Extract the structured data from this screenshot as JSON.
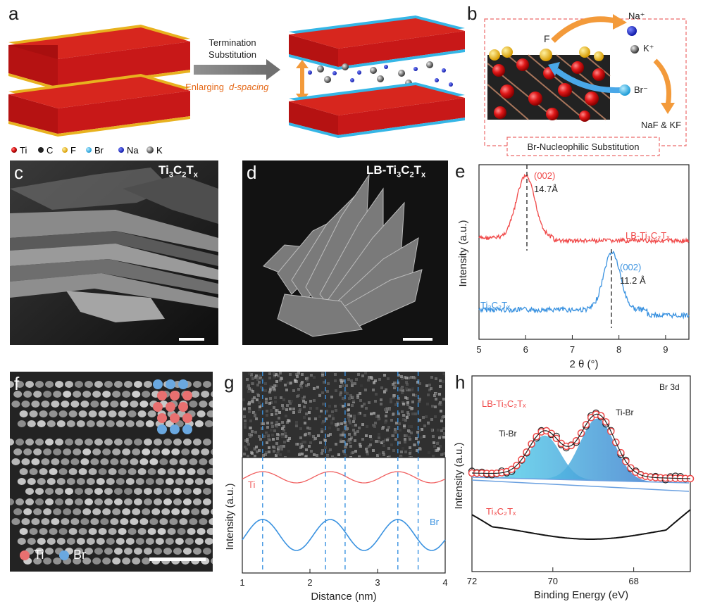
{
  "panel_labels": {
    "a": "a",
    "b": "b",
    "c": "c",
    "d": "d",
    "e": "e",
    "f": "f",
    "g": "g",
    "h": "h"
  },
  "panel_a": {
    "arrow_text_top1": "Termination",
    "arrow_text_top2": "Substitution",
    "arrow_text_bottom1": "Enlarging",
    "arrow_text_bottom2": "d-spacing",
    "legend": [
      {
        "symbol": "Ti",
        "color": "#d81e1e"
      },
      {
        "symbol": "C",
        "color": "#222222"
      },
      {
        "symbol": "F",
        "color": "#e8b21f"
      },
      {
        "symbol": "Br",
        "color": "#35b6e6"
      },
      {
        "symbol": "Na",
        "color": "#1b2bd1"
      },
      {
        "symbol": "K",
        "color": "#555555"
      }
    ]
  },
  "panel_b": {
    "F": "F",
    "Na": "Na⁺",
    "K": "K⁺",
    "Br": "Br⁻",
    "product": "NaF & KF",
    "caption": "Br-Nucleophilic Substitution"
  },
  "panel_c": {
    "title_main": "Ti",
    "title_sub1": "3",
    "title_mid": "C",
    "title_sub2": "2",
    "title_end": "T",
    "title_sub3": "x"
  },
  "panel_d": {
    "prefix": "LB-Ti",
    "sub1": "3",
    "mid": "C",
    "sub2": "2",
    "end": "T",
    "sub3": "x"
  },
  "panel_e": {
    "ylabel": "Intensity (a.u.)",
    "xlabel": "2 θ (°)",
    "xticks": [
      "5",
      "6",
      "7",
      "8",
      "9"
    ],
    "peak1_label": "(002)",
    "peak1_spacing": "14.7Å",
    "peak2_label": "(002)",
    "peak2_spacing": "11.2 Å",
    "series1": "LB-Ti₃C₂Tₓ",
    "series2": "Ti₃C₂Tₓ",
    "color1": "#f04848",
    "color2": "#3a92e0"
  },
  "panel_f": {
    "legend_ti": "Ti",
    "legend_br": "Br"
  },
  "panel_g": {
    "ylabel": "Intensity (a.u.)",
    "xlabel": "Distance (nm)",
    "xticks": [
      "1",
      "2",
      "3",
      "4"
    ],
    "ti_label": "Ti",
    "br_label": "Br"
  },
  "panel_h": {
    "corner": "Br 3d",
    "series1": "LB-Ti₃C₂Tₓ",
    "series2": "Ti₃C₂Tₓ",
    "peak_label1": "Ti-Br",
    "peak_label2": "Ti-Br",
    "ylabel": "Intensity (a.u.)",
    "xlabel": "Binding Energy (eV)",
    "xticks": [
      "72",
      "70",
      "68"
    ]
  }
}
